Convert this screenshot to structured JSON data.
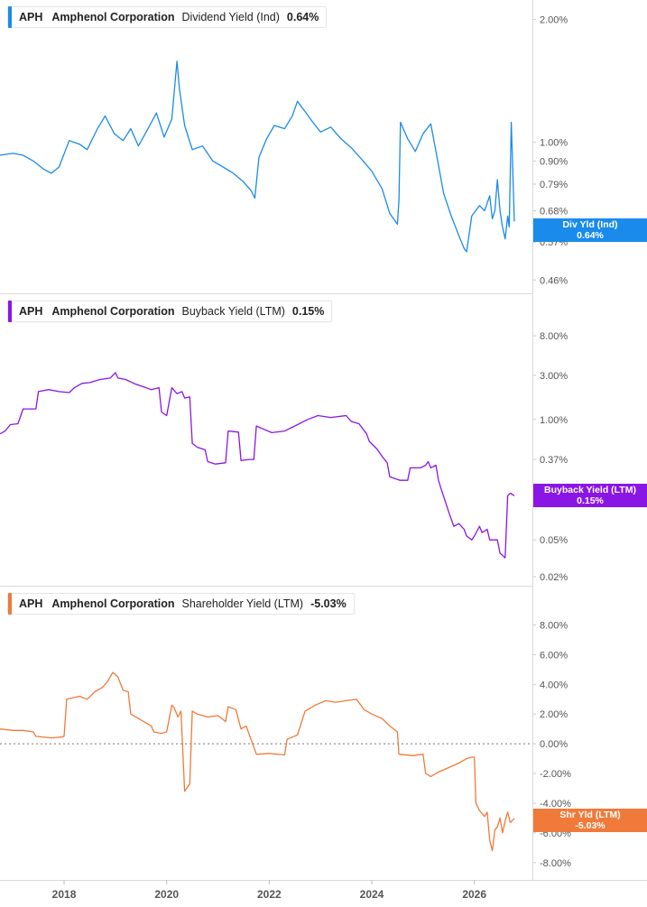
{
  "chart_data": [
    {
      "type": "line",
      "legend": {
        "ticker": "APH",
        "company": "Amphenol Corporation",
        "metric": "Dividend Yield (Ind)",
        "value": "0.64%"
      },
      "badge": {
        "label": "Div Yld (Ind)",
        "value": "0.64%"
      },
      "color": "#1a8bea",
      "scale": "log",
      "ylim": [
        0.44,
        2.1
      ],
      "yticks": [
        {
          "v": 2.0,
          "label": "2.00%"
        },
        {
          "v": 1.0,
          "label": "1.00%"
        },
        {
          "v": 0.9,
          "label": "0.90%"
        },
        {
          "v": 0.79,
          "label": "0.79%"
        },
        {
          "v": 0.68,
          "label": "0.68%"
        },
        {
          "v": 0.57,
          "label": "0.57%"
        },
        {
          "v": 0.46,
          "label": "0.46%"
        }
      ],
      "series": [
        {
          "x": [
            2016.75,
            2017.0,
            2017.2,
            2017.4,
            2017.6,
            2017.75,
            2017.9,
            2018.1,
            2018.3,
            2018.45,
            2018.65,
            2018.8,
            2018.98,
            2019.15,
            2019.3,
            2019.45,
            2019.6,
            2019.8,
            2019.95,
            2020.1,
            2020.2,
            2020.25,
            2020.35,
            2020.5,
            2020.7,
            2020.9,
            2021.1,
            2021.3,
            2021.5,
            2021.65,
            2021.72,
            2021.8,
            2021.95,
            2022.1,
            2022.3,
            2022.45,
            2022.55,
            2022.7,
            2022.85,
            2023.0,
            2023.2,
            2023.4,
            2023.6,
            2023.8,
            2024.0,
            2024.2,
            2024.35,
            2024.5,
            2024.53,
            2024.56,
            2024.7,
            2024.85,
            2025.0,
            2025.15,
            2025.3,
            2025.4,
            2025.55,
            2025.7,
            2025.8,
            2025.85,
            2025.95,
            2026.1,
            2026.2,
            2026.3,
            2026.35,
            2026.4,
            2026.45,
            2026.5,
            2026.55,
            2026.6,
            2026.65,
            2026.68,
            2026.72,
            2026.78
          ],
          "y": [
            0.93,
            0.94,
            0.93,
            0.9,
            0.86,
            0.84,
            0.87,
            1.01,
            0.99,
            0.96,
            1.08,
            1.16,
            1.05,
            1.01,
            1.08,
            0.98,
            1.06,
            1.18,
            1.03,
            1.14,
            1.58,
            1.35,
            1.1,
            0.96,
            0.98,
            0.9,
            0.87,
            0.84,
            0.8,
            0.76,
            0.73,
            0.92,
            1.02,
            1.1,
            1.08,
            1.16,
            1.26,
            1.19,
            1.12,
            1.06,
            1.09,
            1.02,
            0.97,
            0.91,
            0.85,
            0.77,
            0.67,
            0.63,
            0.72,
            1.12,
            1.02,
            0.95,
            1.05,
            1.11,
            0.88,
            0.75,
            0.66,
            0.59,
            0.55,
            0.54,
            0.66,
            0.7,
            0.68,
            0.74,
            0.65,
            0.68,
            0.81,
            0.68,
            0.62,
            0.58,
            0.66,
            0.62,
            1.12,
            0.64
          ]
        }
      ]
    },
    {
      "type": "line",
      "legend": {
        "ticker": "APH",
        "company": "Amphenol Corporation",
        "metric": "Buyback Yield (LTM)",
        "value": "0.15%"
      },
      "badge": {
        "label": "Buyback Yield (LTM)",
        "value": "0.15%"
      },
      "color": "#8a16e6",
      "scale": "log",
      "ylim": [
        0.0175,
        10.5
      ],
      "yticks": [
        {
          "v": 8.0,
          "label": "8.00%"
        },
        {
          "v": 3.0,
          "label": "3.00%"
        },
        {
          "v": 1.0,
          "label": "1.00%"
        },
        {
          "v": 0.37,
          "label": "0.37%"
        },
        {
          "v": 0.05,
          "label": "0.05%"
        },
        {
          "v": 0.02,
          "label": "0.02%"
        }
      ],
      "series": [
        {
          "x": [
            2016.75,
            2016.85,
            2016.95,
            2017.1,
            2017.2,
            2017.35,
            2017.45,
            2017.5,
            2017.7,
            2017.9,
            2018.1,
            2018.2,
            2018.35,
            2018.5,
            2018.7,
            2018.9,
            2019.0,
            2019.05,
            2019.2,
            2019.4,
            2019.55,
            2019.7,
            2019.85,
            2019.9,
            2020.0,
            2020.1,
            2020.2,
            2020.3,
            2020.35,
            2020.45,
            2020.5,
            2020.6,
            2020.75,
            2020.8,
            2020.95,
            2021.15,
            2021.2,
            2021.4,
            2021.45,
            2021.6,
            2021.7,
            2021.75,
            2021.9,
            2022.05,
            2022.3,
            2022.5,
            2022.75,
            2022.95,
            2023.2,
            2023.5,
            2023.6,
            2023.75,
            2023.9,
            2023.95,
            2024.1,
            2024.2,
            2024.3,
            2024.35,
            2024.55,
            2024.7,
            2024.75,
            2024.95,
            2025.05,
            2025.1,
            2025.15,
            2025.25,
            2025.3,
            2025.35,
            2025.5,
            2025.6,
            2025.7,
            2025.8,
            2025.85,
            2025.95,
            2026.0,
            2026.1,
            2026.15,
            2026.25,
            2026.3,
            2026.45,
            2026.5,
            2026.6,
            2026.65,
            2026.7,
            2026.78
          ],
          "y": [
            0.7,
            0.75,
            0.88,
            0.9,
            1.3,
            1.3,
            1.3,
            2.0,
            2.1,
            2.0,
            1.95,
            2.2,
            2.45,
            2.5,
            2.7,
            2.8,
            3.2,
            2.8,
            2.7,
            2.4,
            2.25,
            2.1,
            2.2,
            1.2,
            1.1,
            2.2,
            1.9,
            2.0,
            1.7,
            1.75,
            0.55,
            0.5,
            0.47,
            0.35,
            0.33,
            0.34,
            0.75,
            0.73,
            0.36,
            0.37,
            0.37,
            0.85,
            0.78,
            0.72,
            0.75,
            0.85,
            1.0,
            1.1,
            1.05,
            1.1,
            0.95,
            0.9,
            0.7,
            0.58,
            0.48,
            0.4,
            0.34,
            0.24,
            0.22,
            0.22,
            0.3,
            0.3,
            0.32,
            0.35,
            0.3,
            0.32,
            0.22,
            0.18,
            0.1,
            0.07,
            0.075,
            0.065,
            0.055,
            0.05,
            0.055,
            0.07,
            0.06,
            0.065,
            0.05,
            0.05,
            0.036,
            0.032,
            0.15,
            0.16,
            0.15
          ]
        }
      ]
    },
    {
      "type": "line",
      "legend": {
        "ticker": "APH",
        "company": "Amphenol Corporation",
        "metric": "Shareholder Yield (LTM)",
        "value": "-5.03%"
      },
      "badge": {
        "label": "Shr Yld (LTM)",
        "value": "-5.03%"
      },
      "color": "#f07a3a",
      "scale": "linear",
      "ylim": [
        -8.8,
        9.0
      ],
      "yticks": [
        {
          "v": 8.0,
          "label": "8.00%"
        },
        {
          "v": 6.0,
          "label": "6.00%"
        },
        {
          "v": 4.0,
          "label": "4.00%"
        },
        {
          "v": 2.0,
          "label": "2.00%"
        },
        {
          "v": 0.0,
          "label": "0.00%"
        },
        {
          "v": -2.0,
          "label": "-2.00%"
        },
        {
          "v": -4.0,
          "label": "-4.00%"
        },
        {
          "v": -6.0,
          "label": "-6.00%"
        },
        {
          "v": -8.0,
          "label": "-8.00%"
        }
      ],
      "zero_line": true,
      "series": [
        {
          "x": [
            2016.75,
            2017.0,
            2017.2,
            2017.4,
            2017.45,
            2017.75,
            2017.95,
            2018.0,
            2018.05,
            2018.3,
            2018.45,
            2018.6,
            2018.75,
            2018.85,
            2018.95,
            2019.05,
            2019.15,
            2019.25,
            2019.3,
            2019.5,
            2019.7,
            2019.75,
            2019.9,
            2020.0,
            2020.1,
            2020.15,
            2020.22,
            2020.28,
            2020.35,
            2020.45,
            2020.5,
            2020.6,
            2020.8,
            2021.0,
            2021.15,
            2021.2,
            2021.35,
            2021.45,
            2021.55,
            2021.75,
            2021.8,
            2022.0,
            2022.3,
            2022.35,
            2022.55,
            2022.7,
            2022.9,
            2023.1,
            2023.3,
            2023.5,
            2023.7,
            2023.85,
            2024.0,
            2024.2,
            2024.35,
            2024.5,
            2024.53,
            2024.8,
            2025.0,
            2025.05,
            2025.15,
            2025.3,
            2025.5,
            2025.7,
            2025.85,
            2025.95,
            2026.0,
            2026.03,
            2026.1,
            2026.2,
            2026.25,
            2026.3,
            2026.35,
            2026.4,
            2026.45,
            2026.5,
            2026.55,
            2026.6,
            2026.65,
            2026.7,
            2026.78
          ],
          "y": [
            1.0,
            0.9,
            0.9,
            0.8,
            0.5,
            0.4,
            0.45,
            0.5,
            3.0,
            3.2,
            3.0,
            3.5,
            3.8,
            4.2,
            4.8,
            4.5,
            3.6,
            3.5,
            2.0,
            1.6,
            1.2,
            0.8,
            0.7,
            0.8,
            2.6,
            2.4,
            1.8,
            2.2,
            -3.2,
            -2.7,
            2.2,
            2.0,
            1.8,
            1.9,
            1.5,
            2.5,
            2.3,
            1.0,
            1.2,
            -0.7,
            -0.7,
            -0.65,
            -0.75,
            0.3,
            0.6,
            2.2,
            2.6,
            2.9,
            2.8,
            2.9,
            3.0,
            2.3,
            2.0,
            1.7,
            1.2,
            0.8,
            -0.7,
            -0.8,
            -0.7,
            -2.0,
            -2.2,
            -1.9,
            -1.6,
            -1.3,
            -1.0,
            -0.9,
            -0.9,
            -4.0,
            -4.5,
            -4.9,
            -4.6,
            -6.5,
            -7.2,
            -5.8,
            -5.6,
            -5.0,
            -6.0,
            -5.2,
            -4.6,
            -5.3,
            -5.03
          ]
        }
      ]
    }
  ],
  "x_axis": {
    "ticks": [
      {
        "v": 2018,
        "label": "2018"
      },
      {
        "v": 2020,
        "label": "2020"
      },
      {
        "v": 2022,
        "label": "2022"
      },
      {
        "v": 2024,
        "label": "2024"
      },
      {
        "v": 2026,
        "label": "2026"
      }
    ],
    "range": [
      2016.75,
      2026.78
    ]
  }
}
